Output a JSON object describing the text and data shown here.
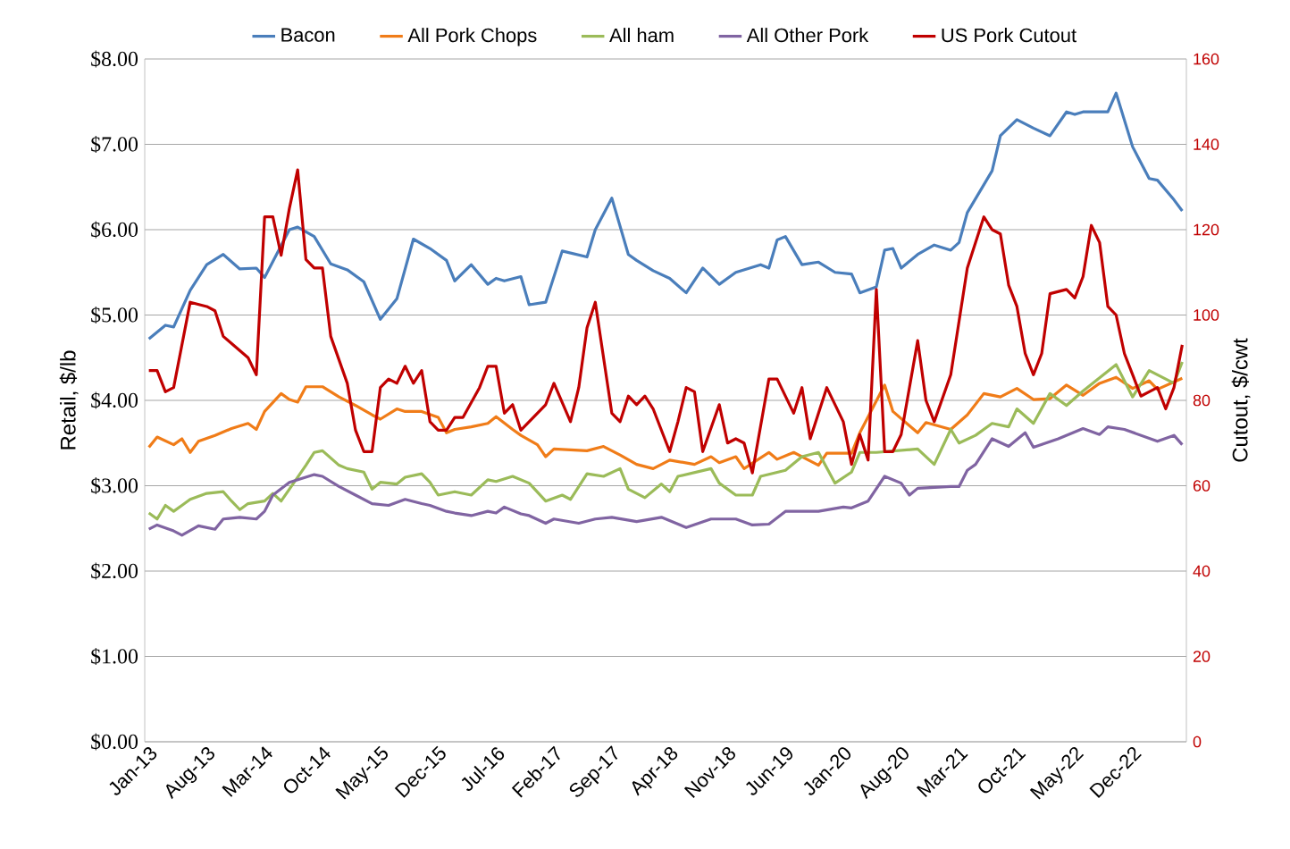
{
  "chart_data": {
    "type": "line",
    "ylabel": "Retail, $/lb",
    "y2label": "Cutout, $/cwt",
    "grid": "y",
    "legend": "top",
    "xlim": [
      "2012-12-16",
      "2023-06-16"
    ],
    "xticks": [
      {
        "value": "2013-01",
        "label": "Jan-13"
      },
      {
        "value": "2013-08",
        "label": "Aug-13"
      },
      {
        "value": "2014-03",
        "label": "Mar-14"
      },
      {
        "value": "2014-10",
        "label": "Oct-14"
      },
      {
        "value": "2015-05",
        "label": "May-15"
      },
      {
        "value": "2015-12",
        "label": "Dec-15"
      },
      {
        "value": "2016-07",
        "label": "Jul-16"
      },
      {
        "value": "2017-02",
        "label": "Feb-17"
      },
      {
        "value": "2017-09",
        "label": "Sep-17"
      },
      {
        "value": "2018-04",
        "label": "Apr-18"
      },
      {
        "value": "2018-11",
        "label": "Nov-18"
      },
      {
        "value": "2019-06",
        "label": "Jun-19"
      },
      {
        "value": "2020-01",
        "label": "Jan-20"
      },
      {
        "value": "2020-08",
        "label": "Aug-20"
      },
      {
        "value": "2021-03",
        "label": "Mar-21"
      },
      {
        "value": "2021-10",
        "label": "Oct-21"
      },
      {
        "value": "2022-05",
        "label": "May-22"
      },
      {
        "value": "2022-12",
        "label": "Dec-22"
      }
    ],
    "ylim": [
      0,
      8
    ],
    "yticks": [
      {
        "value": 0,
        "label": "$0.00"
      },
      {
        "value": 1,
        "label": "$1.00"
      },
      {
        "value": 2,
        "label": "$2.00"
      },
      {
        "value": 3,
        "label": "$3.00"
      },
      {
        "value": 4,
        "label": "$4.00"
      },
      {
        "value": 5,
        "label": "$5.00"
      },
      {
        "value": 6,
        "label": "$6.00"
      },
      {
        "value": 7,
        "label": "$7.00"
      },
      {
        "value": 8,
        "label": "$8.00"
      }
    ],
    "y2lim": [
      0,
      160
    ],
    "y2ticks": [
      0,
      20,
      40,
      60,
      80,
      100,
      120,
      140,
      160
    ],
    "series": [
      {
        "name": "Bacon",
        "color": "#4a7ebb",
        "x": [
          "2013-01",
          "2013-03",
          "2013-04",
          "2013-06",
          "2013-08",
          "2013-10",
          "2013-12",
          "2014-02",
          "2014-03",
          "2014-06",
          "2014-07",
          "2014-09",
          "2014-11",
          "2015-01",
          "2015-03",
          "2015-05",
          "2015-07",
          "2015-09",
          "2015-11",
          "2016-01",
          "2016-02",
          "2016-04",
          "2016-06",
          "2016-07",
          "2016-08",
          "2016-10",
          "2016-11",
          "2017-01",
          "2017-03",
          "2017-06",
          "2017-07",
          "2017-09",
          "2017-11",
          "2017-12",
          "2018-02",
          "2018-04",
          "2018-06",
          "2018-08",
          "2018-10",
          "2018-12",
          "2019-03",
          "2019-04",
          "2019-05",
          "2019-06",
          "2019-08",
          "2019-10",
          "2019-12",
          "2020-02",
          "2020-03",
          "2020-05",
          "2020-06",
          "2020-07",
          "2020-08",
          "2020-10",
          "2020-12",
          "2021-02",
          "2021-03",
          "2021-04",
          "2021-07",
          "2021-08",
          "2021-10",
          "2021-12",
          "2022-02",
          "2022-04",
          "2022-05",
          "2022-06",
          "2022-09",
          "2022-10",
          "2022-12",
          "2023-02",
          "2023-03",
          "2023-05",
          "2023-06"
        ],
        "values": [
          4.72,
          4.88,
          4.86,
          5.29,
          5.59,
          5.71,
          5.54,
          5.55,
          5.44,
          6.0,
          6.03,
          5.92,
          5.6,
          5.53,
          5.39,
          4.95,
          5.19,
          5.89,
          5.78,
          5.64,
          5.4,
          5.59,
          5.36,
          5.43,
          5.4,
          5.45,
          5.12,
          5.15,
          5.75,
          5.68,
          6.0,
          6.37,
          5.71,
          5.64,
          5.52,
          5.43,
          5.26,
          5.55,
          5.36,
          5.5,
          5.59,
          5.55,
          5.88,
          5.92,
          5.59,
          5.62,
          5.5,
          5.48,
          5.26,
          5.33,
          5.76,
          5.78,
          5.55,
          5.71,
          5.82,
          5.76,
          5.85,
          6.2,
          6.69,
          7.1,
          7.29,
          7.19,
          7.1,
          7.38,
          7.35,
          7.38,
          7.38,
          7.6,
          6.97,
          6.6,
          6.58,
          6.35,
          6.22
        ]
      },
      {
        "name": "All Pork Chops",
        "color": "#f07c18",
        "x": [
          "2013-01",
          "2013-02",
          "2013-04",
          "2013-05",
          "2013-06",
          "2013-07",
          "2013-09",
          "2013-11",
          "2014-01",
          "2014-02",
          "2014-03",
          "2014-05",
          "2014-06",
          "2014-07",
          "2014-08",
          "2014-10",
          "2014-12",
          "2015-02",
          "2015-04",
          "2015-05",
          "2015-07",
          "2015-08",
          "2015-10",
          "2015-12",
          "2016-01",
          "2016-02",
          "2016-04",
          "2016-06",
          "2016-07",
          "2016-09",
          "2016-10",
          "2016-12",
          "2017-01",
          "2017-02",
          "2017-06",
          "2017-08",
          "2017-10",
          "2017-12",
          "2018-02",
          "2018-04",
          "2018-07",
          "2018-09",
          "2018-10",
          "2018-12",
          "2019-01",
          "2019-04",
          "2019-05",
          "2019-07",
          "2019-10",
          "2019-11",
          "2020-02",
          "2020-03",
          "2020-06",
          "2020-07",
          "2020-10",
          "2020-11",
          "2021-02",
          "2021-04",
          "2021-06",
          "2021-08",
          "2021-10",
          "2021-12",
          "2022-02",
          "2022-04",
          "2022-06",
          "2022-08",
          "2022-10",
          "2022-12",
          "2023-02",
          "2023-03",
          "2023-06"
        ],
        "values": [
          3.45,
          3.57,
          3.48,
          3.55,
          3.39,
          3.52,
          3.59,
          3.67,
          3.73,
          3.66,
          3.87,
          4.08,
          4.01,
          3.98,
          4.16,
          4.16,
          4.04,
          3.94,
          3.83,
          3.78,
          3.9,
          3.87,
          3.87,
          3.8,
          3.62,
          3.66,
          3.69,
          3.73,
          3.81,
          3.66,
          3.59,
          3.48,
          3.34,
          3.43,
          3.41,
          3.46,
          3.36,
          3.25,
          3.2,
          3.3,
          3.25,
          3.34,
          3.27,
          3.34,
          3.2,
          3.39,
          3.31,
          3.39,
          3.24,
          3.38,
          3.38,
          3.62,
          4.18,
          3.87,
          3.62,
          3.74,
          3.66,
          3.83,
          4.08,
          4.04,
          4.14,
          4.01,
          4.02,
          4.18,
          4.06,
          4.2,
          4.27,
          4.14,
          4.23,
          4.13,
          4.26
        ]
      },
      {
        "name": "All ham",
        "color": "#9bbb59",
        "x": [
          "2013-01",
          "2013-02",
          "2013-03",
          "2013-04",
          "2013-05",
          "2013-06",
          "2013-08",
          "2013-10",
          "2013-11",
          "2013-12",
          "2014-01",
          "2014-03",
          "2014-04",
          "2014-05",
          "2014-06",
          "2014-08",
          "2014-09",
          "2014-10",
          "2014-12",
          "2015-01",
          "2015-03",
          "2015-04",
          "2015-05",
          "2015-07",
          "2015-08",
          "2015-10",
          "2015-11",
          "2015-12",
          "2016-02",
          "2016-04",
          "2016-06",
          "2016-07",
          "2016-09",
          "2016-11",
          "2017-01",
          "2017-03",
          "2017-04",
          "2017-06",
          "2017-08",
          "2017-10",
          "2017-11",
          "2018-01",
          "2018-03",
          "2018-04",
          "2018-05",
          "2018-09",
          "2018-10",
          "2018-12",
          "2019-02",
          "2019-03",
          "2019-06",
          "2019-08",
          "2019-10",
          "2019-12",
          "2020-02",
          "2020-03",
          "2020-05",
          "2020-10",
          "2020-12",
          "2021-02",
          "2021-03",
          "2021-05",
          "2021-07",
          "2021-09",
          "2021-10",
          "2021-12",
          "2022-02",
          "2022-04",
          "2022-06",
          "2022-10",
          "2022-12",
          "2023-02",
          "2023-03",
          "2023-05",
          "2023-06"
        ],
        "values": [
          2.68,
          2.61,
          2.77,
          2.7,
          2.77,
          2.84,
          2.91,
          2.93,
          2.82,
          2.72,
          2.79,
          2.82,
          2.91,
          2.82,
          2.96,
          3.24,
          3.39,
          3.41,
          3.24,
          3.2,
          3.16,
          2.96,
          3.04,
          3.02,
          3.1,
          3.14,
          3.04,
          2.89,
          2.93,
          2.89,
          3.07,
          3.05,
          3.11,
          3.03,
          2.82,
          2.89,
          2.84,
          3.14,
          3.11,
          3.2,
          2.96,
          2.86,
          3.02,
          2.93,
          3.11,
          3.2,
          3.03,
          2.89,
          2.89,
          3.11,
          3.18,
          3.34,
          3.39,
          3.03,
          3.16,
          3.39,
          3.39,
          3.43,
          3.25,
          3.66,
          3.5,
          3.59,
          3.73,
          3.69,
          3.9,
          3.73,
          4.08,
          3.94,
          4.11,
          4.42,
          4.04,
          4.35,
          4.3,
          4.2,
          4.45
        ]
      },
      {
        "name": "All Other Pork",
        "color": "#8064a2",
        "x": [
          "2013-01",
          "2013-02",
          "2013-04",
          "2013-05",
          "2013-07",
          "2013-09",
          "2013-10",
          "2013-12",
          "2014-02",
          "2014-03",
          "2014-04",
          "2014-06",
          "2014-09",
          "2014-10",
          "2014-12",
          "2015-02",
          "2015-04",
          "2015-06",
          "2015-08",
          "2015-10",
          "2015-11",
          "2016-01",
          "2016-02",
          "2016-04",
          "2016-06",
          "2016-07",
          "2016-08",
          "2016-10",
          "2016-11",
          "2017-01",
          "2017-02",
          "2017-05",
          "2017-07",
          "2017-09",
          "2017-12",
          "2018-03",
          "2018-06",
          "2018-09",
          "2018-12",
          "2019-02",
          "2019-04",
          "2019-06",
          "2019-10",
          "2020-01",
          "2020-02",
          "2020-04",
          "2020-06",
          "2020-08",
          "2020-09",
          "2020-10",
          "2021-02",
          "2021-03",
          "2021-04",
          "2021-05",
          "2021-07",
          "2021-09",
          "2021-11",
          "2021-12",
          "2022-03",
          "2022-06",
          "2022-08",
          "2022-09",
          "2022-11",
          "2023-03",
          "2023-05",
          "2023-06"
        ],
        "values": [
          2.49,
          2.54,
          2.47,
          2.42,
          2.53,
          2.49,
          2.61,
          2.63,
          2.61,
          2.7,
          2.89,
          3.04,
          3.13,
          3.11,
          2.99,
          2.89,
          2.79,
          2.77,
          2.84,
          2.79,
          2.77,
          2.7,
          2.68,
          2.65,
          2.7,
          2.68,
          2.75,
          2.67,
          2.65,
          2.56,
          2.61,
          2.56,
          2.61,
          2.63,
          2.58,
          2.63,
          2.51,
          2.61,
          2.61,
          2.54,
          2.55,
          2.7,
          2.7,
          2.75,
          2.74,
          2.82,
          3.11,
          3.03,
          2.89,
          2.97,
          2.99,
          2.99,
          3.18,
          3.25,
          3.55,
          3.46,
          3.62,
          3.45,
          3.55,
          3.67,
          3.6,
          3.69,
          3.66,
          3.52,
          3.59,
          3.48
        ]
      },
      {
        "name": "US Pork Cutout",
        "color": "#c00000",
        "axis": "y2",
        "x": [
          "2013-01",
          "2013-02",
          "2013-03",
          "2013-04",
          "2013-06",
          "2013-08",
          "2013-09",
          "2013-10",
          "2014-01",
          "2014-02",
          "2014-03",
          "2014-04",
          "2014-05",
          "2014-06",
          "2014-07",
          "2014-08",
          "2014-09",
          "2014-10",
          "2014-11",
          "2015-01",
          "2015-02",
          "2015-03",
          "2015-04",
          "2015-05",
          "2015-06",
          "2015-07",
          "2015-08",
          "2015-09",
          "2015-10",
          "2015-11",
          "2015-12",
          "2016-01",
          "2016-02",
          "2016-03",
          "2016-05",
          "2016-06",
          "2016-07",
          "2016-08",
          "2016-09",
          "2016-10",
          "2017-01",
          "2017-02",
          "2017-04",
          "2017-05",
          "2017-06",
          "2017-07",
          "2017-08",
          "2017-09",
          "2017-10",
          "2017-11",
          "2017-12",
          "2018-01",
          "2018-02",
          "2018-04",
          "2018-05",
          "2018-06",
          "2018-07",
          "2018-08",
          "2018-10",
          "2018-11",
          "2018-12",
          "2019-01",
          "2019-02",
          "2019-04",
          "2019-05",
          "2019-07",
          "2019-08",
          "2019-09",
          "2019-11",
          "2020-01",
          "2020-02",
          "2020-03",
          "2020-04",
          "2020-05",
          "2020-06",
          "2020-07",
          "2020-08",
          "2020-10",
          "2020-11",
          "2020-12",
          "2021-02",
          "2021-04",
          "2021-06",
          "2021-07",
          "2021-08",
          "2021-09",
          "2021-10",
          "2021-11",
          "2021-12",
          "2022-01",
          "2022-02",
          "2022-04",
          "2022-05",
          "2022-06",
          "2022-07",
          "2022-08",
          "2022-09",
          "2022-10",
          "2022-11",
          "2023-01",
          "2023-02",
          "2023-03",
          "2023-04",
          "2023-05",
          "2023-06"
        ],
        "values": [
          87,
          87,
          82,
          83,
          103,
          102,
          101,
          95,
          90,
          86,
          123,
          123,
          114,
          125,
          134,
          113,
          111,
          111,
          95,
          84,
          73,
          68,
          68,
          83,
          85,
          84,
          88,
          84,
          87,
          75,
          73,
          73,
          76,
          76,
          83,
          88,
          88,
          77,
          79,
          73,
          79,
          84,
          75,
          83,
          97,
          103,
          90,
          77,
          75,
          81,
          79,
          81,
          78,
          68,
          75,
          83,
          82,
          68,
          79,
          70,
          71,
          70,
          63,
          85,
          85,
          77,
          83,
          71,
          83,
          75,
          65,
          72,
          66,
          106,
          68,
          68,
          72,
          94,
          80,
          75,
          86,
          111,
          123,
          120,
          119,
          107,
          102,
          91,
          86,
          91,
          105,
          106,
          104,
          109,
          121,
          117,
          102,
          100,
          91,
          81,
          82,
          83,
          78,
          83,
          93
        ]
      }
    ]
  }
}
